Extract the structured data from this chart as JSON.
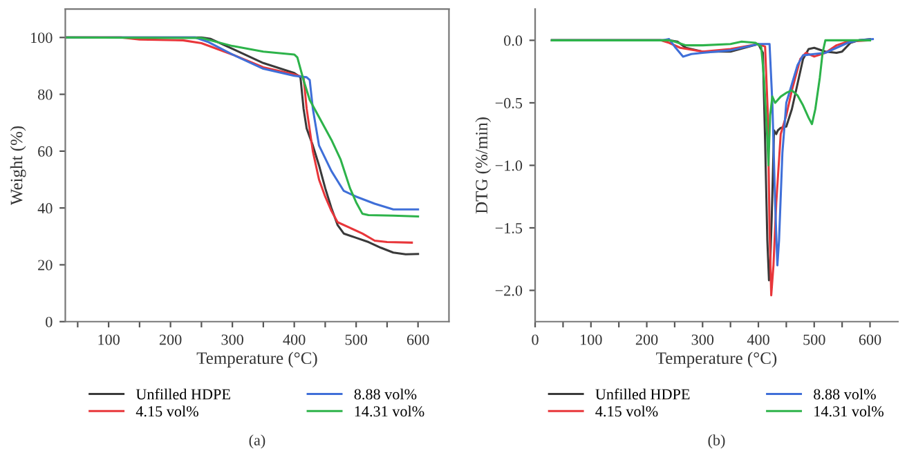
{
  "chart_data": [
    {
      "type": "line",
      "xlabel": "Temperature (°C)",
      "ylabel": "Weight (%)",
      "xlim": [
        30,
        650
      ],
      "ylim": [
        0,
        110
      ],
      "xticks": [
        {
          "value": 50,
          "label": null
        },
        100,
        {
          "value": 150,
          "label": null
        },
        200,
        {
          "value": 250,
          "label": null
        },
        300,
        {
          "value": 350,
          "label": null
        },
        400,
        {
          "value": 450,
          "label": null
        },
        500,
        {
          "value": 550,
          "label": null
        },
        600
      ],
      "yticks": [
        0,
        20,
        40,
        60,
        80,
        100
      ],
      "grid": false,
      "legend": "bottom",
      "line_style": "solid",
      "marker": "none",
      "annotations": [
        "(a)"
      ],
      "series": [
        {
          "name": "Unfilled HDPE",
          "color": "#3a3a3a",
          "x": [
            30,
            250,
            265,
            300,
            350,
            400,
            410,
            415,
            420,
            430,
            440,
            450,
            460,
            470,
            480,
            500,
            520,
            540,
            560,
            580,
            600
          ],
          "values": [
            100,
            100,
            99.5,
            96,
            91,
            87.5,
            86,
            75,
            68,
            62,
            55,
            47,
            40,
            34,
            31,
            29.5,
            28,
            26,
            24.3,
            23.7,
            23.8
          ]
        },
        {
          "name": "4.15 vol%",
          "color": "#e8363a",
          "x": [
            30,
            120,
            150,
            220,
            250,
            300,
            350,
            400,
            415,
            420,
            430,
            440,
            450,
            460,
            470,
            490,
            510,
            530,
            550,
            590
          ],
          "values": [
            100,
            100,
            99.3,
            99,
            98,
            94,
            89.5,
            87,
            86,
            75,
            60,
            50,
            44,
            39,
            35,
            33,
            31,
            28.5,
            28,
            27.8
          ]
        },
        {
          "name": "8.88 vol%",
          "color": "#3f6fd8",
          "x": [
            30,
            240,
            260,
            300,
            350,
            400,
            420,
            425,
            430,
            440,
            460,
            480,
            500,
            530,
            560,
            600
          ],
          "values": [
            100,
            100,
            98.5,
            94,
            89,
            86.5,
            86,
            85,
            75,
            62,
            53,
            46,
            44,
            41.5,
            39.5,
            39.5
          ]
        },
        {
          "name": "14.31 vol%",
          "color": "#2db34a",
          "x": [
            30,
            250,
            300,
            350,
            400,
            405,
            415,
            425,
            440,
            460,
            475,
            490,
            500,
            510,
            520,
            560,
            600
          ],
          "values": [
            100,
            99.8,
            97,
            95,
            94,
            93,
            85,
            78,
            72,
            64,
            57,
            47,
            42,
            38,
            37.5,
            37.3,
            37
          ]
        }
      ]
    },
    {
      "type": "line",
      "xlabel": "Temperature (°C)",
      "ylabel": "DTG (%/min)",
      "xlim": [
        0,
        650
      ],
      "ylim": [
        -2.25,
        0.25
      ],
      "xticks": [
        0,
        {
          "value": 50,
          "label": null
        },
        100,
        {
          "value": 150,
          "label": null
        },
        200,
        {
          "value": 250,
          "label": null
        },
        300,
        {
          "value": 350,
          "label": null
        },
        400,
        {
          "value": 450,
          "label": null
        },
        500,
        {
          "value": 550,
          "label": null
        },
        600
      ],
      "yticks": [
        {
          "value": -2.0,
          "label": "−2.0"
        },
        {
          "value": -1.5,
          "label": "−1.5"
        },
        {
          "value": -1.0,
          "label": "−1.0"
        },
        {
          "value": -0.5,
          "label": "−0.5"
        },
        {
          "value": 0,
          "label": "0.0"
        }
      ],
      "grid": false,
      "legend": "bottom",
      "line_style": "solid",
      "marker": "none",
      "annotations": [
        "(b)"
      ],
      "series": [
        {
          "name": "Unfilled HDPE",
          "color": "#3a3a3a",
          "x": [
            30,
            240,
            255,
            270,
            300,
            350,
            400,
            408,
            412,
            416,
            419,
            421,
            424,
            428,
            432,
            435,
            440,
            450,
            460,
            470,
            480,
            490,
            500,
            520,
            540,
            550,
            565,
            580,
            600
          ],
          "values": [
            0,
            0,
            -0.01,
            -0.06,
            -0.09,
            -0.09,
            -0.03,
            -0.1,
            -0.8,
            -1.6,
            -1.92,
            -1.8,
            -1.4,
            -0.72,
            -0.75,
            -0.72,
            -0.7,
            -0.69,
            -0.55,
            -0.35,
            -0.15,
            -0.07,
            -0.06,
            -0.09,
            -0.1,
            -0.09,
            -0.02,
            0,
            0.01
          ]
        },
        {
          "name": "4.15 vol%",
          "color": "#e8363a",
          "x": [
            30,
            225,
            240,
            260,
            300,
            350,
            400,
            412,
            417,
            420,
            423,
            427,
            432,
            440,
            450,
            460,
            475,
            485,
            500,
            520,
            540,
            560,
            600
          ],
          "values": [
            0,
            0,
            -0.02,
            -0.06,
            -0.09,
            -0.07,
            -0.03,
            -0.05,
            -0.6,
            -1.5,
            -2.04,
            -1.8,
            -1.3,
            -0.75,
            -0.6,
            -0.4,
            -0.15,
            -0.1,
            -0.13,
            -0.1,
            -0.04,
            -0.01,
            0
          ]
        },
        {
          "name": "8.88 vol%",
          "color": "#3f6fd8",
          "x": [
            30,
            228,
            240,
            250,
            265,
            280,
            300,
            350,
            400,
            420,
            425,
            430,
            434,
            437,
            443,
            450,
            460,
            470,
            480,
            500,
            520,
            540,
            560,
            580,
            605
          ],
          "values": [
            0,
            0,
            0.01,
            -0.05,
            -0.13,
            -0.11,
            -0.1,
            -0.08,
            -0.03,
            -0.03,
            -0.5,
            -1.3,
            -1.8,
            -1.6,
            -0.9,
            -0.5,
            -0.35,
            -0.2,
            -0.12,
            -0.11,
            -0.1,
            -0.06,
            -0.02,
            0,
            0.01
          ]
        },
        {
          "name": "14.31 vol%",
          "color": "#2db34a",
          "x": [
            30,
            240,
            250,
            270,
            300,
            350,
            370,
            395,
            405,
            410,
            415,
            418,
            421,
            425,
            430,
            440,
            450,
            460,
            470,
            480,
            490,
            496,
            502,
            510,
            515,
            520,
            560,
            600
          ],
          "values": [
            0,
            0,
            -0.01,
            -0.04,
            -0.04,
            -0.03,
            -0.01,
            -0.02,
            -0.05,
            -0.3,
            -0.7,
            -1.0,
            -0.6,
            -0.45,
            -0.5,
            -0.45,
            -0.42,
            -0.4,
            -0.44,
            -0.52,
            -0.62,
            -0.67,
            -0.55,
            -0.3,
            -0.1,
            0,
            0,
            0
          ]
        }
      ]
    }
  ]
}
